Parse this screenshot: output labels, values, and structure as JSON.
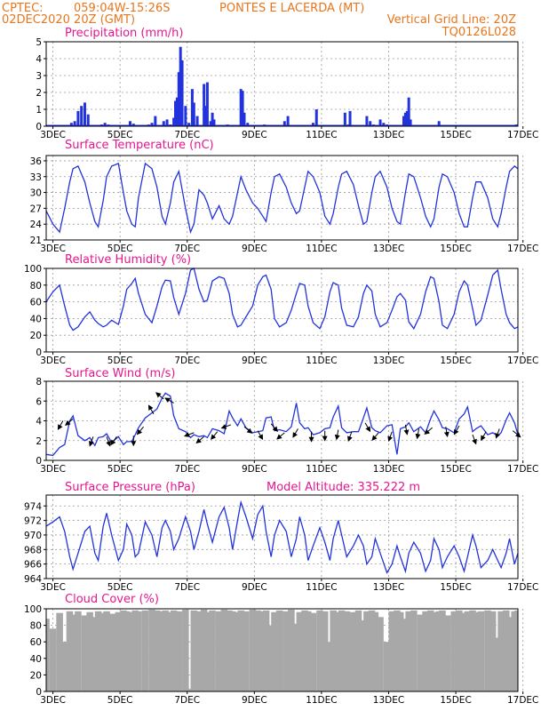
{
  "header": {
    "source": "CPTEC:",
    "coords": "059:04W-15:26S",
    "location": "PONTES E LACERDA (MT)",
    "init_time": "02DEC2020 20Z (GMT)",
    "grid_note": "Vertical Grid Line: 20Z",
    "model": "TQ0126L028"
  },
  "colors": {
    "series": "#2233dd",
    "cloud": "#a8a8a8",
    "header": "#e8761c",
    "titles": "#e4178f",
    "arrows": "#000000"
  },
  "chart_data": [
    {
      "type": "bar",
      "title": "Precipitation (mm/h)",
      "x_ticks": [
        "3DEC",
        "5DEC",
        "7DEC",
        "9DEC",
        "11DEC",
        "13DEC",
        "15DEC",
        "17DEC"
      ],
      "xlim_days": [
        2.8,
        16.85
      ],
      "ylim": [
        0,
        5
      ],
      "y_ticks": [
        "0",
        "1",
        "2",
        "3",
        "4",
        "5"
      ],
      "grid": true,
      "x_days": [
        3.55,
        3.65,
        3.75,
        3.85,
        3.95,
        4.05,
        4.45,
        4.55,
        4.65,
        5.3,
        5.4,
        5.85,
        5.95,
        6.05,
        6.3,
        6.4,
        6.5,
        6.6,
        6.65,
        6.7,
        6.75,
        6.8,
        6.85,
        6.95,
        7.05,
        7.15,
        7.2,
        7.3,
        7.5,
        7.55,
        7.6,
        7.7,
        7.75,
        7.8,
        8.2,
        8.6,
        8.65,
        8.7,
        8.8,
        9.3,
        9.9,
        10.0,
        10.75,
        10.85,
        11.7,
        11.8,
        11.85,
        12.35,
        12.45,
        12.55,
        12.75,
        12.85,
        12.95,
        13.45,
        13.5,
        13.55,
        13.6,
        13.65,
        14.5,
        16.8
      ],
      "values": [
        0.2,
        0.3,
        0.9,
        1.2,
        1.4,
        0.7,
        0.1,
        0.2,
        0.1,
        0.3,
        0.15,
        0.1,
        0.2,
        0.6,
        0.3,
        0.4,
        0.1,
        0.5,
        1.5,
        1.7,
        3.2,
        4.7,
        3.9,
        1.2,
        0.2,
        2.2,
        1.4,
        0.6,
        2.5,
        1.2,
        2.6,
        0.3,
        0.8,
        0.4,
        0.1,
        2.2,
        2.1,
        0.8,
        0.2,
        0.1,
        0.3,
        0.6,
        0.2,
        1.0,
        0.8,
        0.1,
        0.9,
        0.6,
        0.3,
        0.1,
        0.4,
        0.2,
        0.1,
        0.6,
        0.8,
        0.9,
        1.7,
        0.4,
        0.3,
        0.1
      ]
    },
    {
      "type": "line",
      "title": "Surface Temperature (nC)",
      "x_ticks": [
        "3DEC",
        "5DEC",
        "7DEC",
        "9DEC",
        "11DEC",
        "13DEC",
        "15DEC",
        "17DEC"
      ],
      "ylim": [
        21,
        37
      ],
      "y_ticks": [
        "21",
        "24",
        "27",
        "30",
        "33",
        "36"
      ],
      "grid": true,
      "x_days": [
        2.8,
        3.0,
        3.2,
        3.35,
        3.5,
        3.6,
        3.75,
        3.95,
        4.1,
        4.25,
        4.35,
        4.5,
        4.6,
        4.75,
        4.95,
        5.1,
        5.2,
        5.35,
        5.45,
        5.55,
        5.75,
        5.95,
        6.1,
        6.25,
        6.35,
        6.5,
        6.6,
        6.75,
        6.95,
        7.1,
        7.2,
        7.35,
        7.5,
        7.6,
        7.75,
        7.95,
        8.1,
        8.25,
        8.35,
        8.5,
        8.6,
        8.75,
        8.95,
        9.1,
        9.25,
        9.35,
        9.5,
        9.6,
        9.75,
        9.95,
        10.1,
        10.25,
        10.35,
        10.5,
        10.6,
        10.75,
        10.95,
        11.1,
        11.25,
        11.35,
        11.5,
        11.6,
        11.75,
        11.95,
        12.1,
        12.25,
        12.35,
        12.5,
        12.6,
        12.75,
        12.95,
        13.1,
        13.25,
        13.35,
        13.5,
        13.6,
        13.75,
        13.95,
        14.1,
        14.25,
        14.35,
        14.5,
        14.6,
        14.75,
        14.95,
        15.1,
        15.25,
        15.35,
        15.5,
        15.6,
        15.75,
        15.95,
        16.1,
        16.25,
        16.35,
        16.5,
        16.6,
        16.75,
        16.85
      ],
      "values": [
        26.5,
        24.0,
        22.5,
        27.0,
        32.0,
        34.5,
        35.0,
        32.0,
        28.0,
        24.5,
        23.5,
        28.5,
        33.0,
        35.0,
        35.5,
        30.0,
        26.5,
        24.0,
        23.5,
        29.0,
        35.5,
        34.5,
        31.0,
        25.5,
        24.0,
        28.0,
        32.0,
        34.0,
        27.0,
        22.5,
        24.0,
        30.5,
        29.5,
        28.0,
        25.0,
        27.5,
        25.0,
        24.0,
        25.5,
        30.0,
        33.0,
        30.5,
        28.0,
        27.0,
        25.5,
        24.5,
        30.0,
        33.0,
        33.5,
        31.0,
        28.0,
        26.0,
        26.5,
        31.0,
        34.0,
        33.0,
        30.0,
        25.5,
        24.0,
        26.0,
        31.0,
        33.5,
        34.0,
        31.5,
        27.5,
        24.0,
        24.5,
        30.0,
        33.0,
        34.0,
        31.0,
        27.0,
        24.5,
        24.0,
        30.0,
        33.5,
        33.0,
        29.0,
        25.5,
        23.5,
        25.0,
        31.0,
        33.5,
        33.0,
        30.0,
        26.0,
        23.5,
        23.5,
        29.0,
        32.0,
        32.0,
        29.0,
        25.0,
        23.5,
        26.0,
        31.0,
        34.0,
        35.0,
        34.5
      ]
    },
    {
      "type": "line",
      "title": "Relative Humidity (%)",
      "x_ticks": [
        "3DEC",
        "5DEC",
        "7DEC",
        "9DEC",
        "11DEC",
        "13DEC",
        "15DEC",
        "17DEC"
      ],
      "ylim": [
        0,
        100
      ],
      "y_ticks": [
        "0",
        "20",
        "40",
        "60",
        "80",
        "100"
      ],
      "grid": true,
      "x_days": [
        2.8,
        3.0,
        3.2,
        3.35,
        3.5,
        3.6,
        3.75,
        3.95,
        4.1,
        4.25,
        4.35,
        4.5,
        4.6,
        4.75,
        4.95,
        5.1,
        5.2,
        5.35,
        5.45,
        5.55,
        5.75,
        5.95,
        6.1,
        6.25,
        6.35,
        6.5,
        6.6,
        6.75,
        6.95,
        7.1,
        7.2,
        7.35,
        7.5,
        7.6,
        7.75,
        7.95,
        8.1,
        8.25,
        8.35,
        8.5,
        8.6,
        8.75,
        8.95,
        9.1,
        9.25,
        9.35,
        9.5,
        9.6,
        9.75,
        9.95,
        10.1,
        10.25,
        10.35,
        10.5,
        10.6,
        10.75,
        10.95,
        11.1,
        11.25,
        11.35,
        11.5,
        11.6,
        11.75,
        11.95,
        12.1,
        12.25,
        12.35,
        12.5,
        12.6,
        12.75,
        12.95,
        13.1,
        13.25,
        13.35,
        13.5,
        13.6,
        13.75,
        13.95,
        14.1,
        14.25,
        14.35,
        14.5,
        14.6,
        14.75,
        14.95,
        15.1,
        15.25,
        15.35,
        15.5,
        15.6,
        15.75,
        15.95,
        16.1,
        16.25,
        16.35,
        16.5,
        16.6,
        16.75,
        16.85
      ],
      "values": [
        60,
        72,
        80,
        55,
        32,
        26,
        30,
        42,
        48,
        38,
        34,
        30,
        32,
        38,
        33,
        55,
        75,
        82,
        88,
        70,
        45,
        35,
        55,
        78,
        86,
        85,
        65,
        45,
        70,
        98,
        100,
        75,
        60,
        62,
        85,
        90,
        88,
        70,
        45,
        30,
        32,
        42,
        55,
        80,
        90,
        92,
        75,
        40,
        30,
        35,
        50,
        70,
        82,
        80,
        55,
        35,
        28,
        42,
        72,
        83,
        80,
        52,
        32,
        30,
        42,
        70,
        80,
        73,
        45,
        30,
        35,
        50,
        66,
        70,
        62,
        36,
        28,
        45,
        72,
        90,
        88,
        60,
        32,
        28,
        45,
        72,
        85,
        80,
        52,
        32,
        38,
        68,
        92,
        98,
        75,
        45,
        35,
        28,
        30
      ]
    },
    {
      "type": "line",
      "title": "Surface Wind (m/s)",
      "x_ticks": [
        "3DEC",
        "5DEC",
        "7DEC",
        "9DEC",
        "11DEC",
        "13DEC",
        "15DEC",
        "17DEC"
      ],
      "ylim": [
        0,
        8
      ],
      "y_ticks": [
        "0",
        "2",
        "4",
        "6",
        "8"
      ],
      "grid": true,
      "x_days": [
        2.8,
        3.0,
        3.2,
        3.35,
        3.5,
        3.6,
        3.75,
        3.95,
        4.1,
        4.25,
        4.35,
        4.5,
        4.6,
        4.75,
        4.95,
        5.1,
        5.2,
        5.35,
        5.45,
        5.55,
        5.75,
        5.95,
        6.1,
        6.25,
        6.35,
        6.5,
        6.6,
        6.75,
        6.95,
        7.1,
        7.2,
        7.35,
        7.5,
        7.6,
        7.75,
        7.95,
        8.1,
        8.25,
        8.35,
        8.5,
        8.6,
        8.75,
        8.95,
        9.1,
        9.25,
        9.35,
        9.5,
        9.6,
        9.75,
        9.95,
        10.1,
        10.25,
        10.35,
        10.5,
        10.6,
        10.75,
        10.95,
        11.1,
        11.25,
        11.35,
        11.5,
        11.6,
        11.75,
        11.95,
        12.1,
        12.25,
        12.35,
        12.5,
        12.6,
        12.75,
        12.95,
        13.1,
        13.25,
        13.35,
        13.5,
        13.6,
        13.75,
        13.95,
        14.1,
        14.25,
        14.35,
        14.5,
        14.6,
        14.75,
        14.95,
        15.1,
        15.25,
        15.35,
        15.5,
        15.6,
        15.75,
        15.95,
        16.1,
        16.25,
        16.35,
        16.5,
        16.6,
        16.75,
        16.85
      ],
      "values": [
        0.6,
        0.5,
        1.3,
        1.6,
        4.0,
        4.5,
        2.5,
        2.0,
        2.3,
        1.5,
        2.3,
        2.4,
        2.7,
        1.8,
        2.4,
        1.6,
        1.9,
        1.9,
        2.6,
        3.3,
        4.3,
        4.8,
        5.2,
        6.3,
        6.8,
        6.5,
        4.5,
        3.2,
        2.9,
        2.3,
        2.6,
        2.4,
        2.5,
        2.3,
        3.2,
        3.0,
        2.7,
        5.0,
        4.3,
        3.5,
        4.2,
        3.3,
        2.8,
        2.9,
        3.0,
        4.3,
        4.4,
        3.0,
        3.1,
        2.9,
        3.4,
        5.8,
        3.8,
        3.2,
        3.3,
        2.6,
        2.8,
        3.2,
        3.3,
        4.4,
        5.5,
        3.3,
        2.8,
        2.9,
        2.9,
        4.3,
        5.3,
        3.3,
        3.0,
        2.8,
        3.5,
        3.6,
        0.6,
        3.2,
        3.4,
        3.8,
        2.9,
        3.4,
        2.8,
        4.2,
        5.0,
        4.1,
        3.3,
        3.2,
        2.8,
        4.2,
        4.7,
        5.4,
        2.9,
        3.2,
        3.5,
        2.6,
        2.8,
        2.5,
        2.8,
        4.1,
        4.8,
        3.8,
        2.6
      ]
    },
    {
      "type": "line",
      "title": "Surface Pressure (hPa)",
      "subtitle": "Model Altitude: 335.222  m",
      "x_ticks": [
        "3DEC",
        "5DEC",
        "7DEC",
        "9DEC",
        "11DEC",
        "13DEC",
        "15DEC",
        "17DEC"
      ],
      "ylim": [
        964,
        975.5
      ],
      "y_ticks": [
        "964",
        "966",
        "968",
        "970",
        "972",
        "974"
      ],
      "grid": true,
      "x_days": [
        2.8,
        3.0,
        3.2,
        3.35,
        3.5,
        3.6,
        3.75,
        3.95,
        4.1,
        4.25,
        4.35,
        4.5,
        4.6,
        4.75,
        4.95,
        5.1,
        5.2,
        5.35,
        5.45,
        5.55,
        5.75,
        5.95,
        6.1,
        6.25,
        6.35,
        6.5,
        6.6,
        6.75,
        6.95,
        7.1,
        7.2,
        7.35,
        7.5,
        7.6,
        7.75,
        7.95,
        8.1,
        8.25,
        8.35,
        8.5,
        8.6,
        8.75,
        8.95,
        9.1,
        9.25,
        9.35,
        9.5,
        9.6,
        9.75,
        9.95,
        10.1,
        10.25,
        10.35,
        10.5,
        10.6,
        10.75,
        10.95,
        11.1,
        11.25,
        11.35,
        11.5,
        11.6,
        11.75,
        11.95,
        12.1,
        12.25,
        12.35,
        12.5,
        12.6,
        12.75,
        12.95,
        13.1,
        13.25,
        13.35,
        13.5,
        13.6,
        13.75,
        13.95,
        14.1,
        14.25,
        14.35,
        14.5,
        14.6,
        14.75,
        14.95,
        15.1,
        15.25,
        15.35,
        15.5,
        15.6,
        15.75,
        15.95,
        16.1,
        16.25,
        16.35,
        16.5,
        16.6,
        16.75,
        16.85
      ],
      "values": [
        971.2,
        971.8,
        972.5,
        970.5,
        967.0,
        965.3,
        967.5,
        970.5,
        971.2,
        967.5,
        966.5,
        971.2,
        973.0,
        970.0,
        966.5,
        968.0,
        971.5,
        970.0,
        967.0,
        967.5,
        971.8,
        970.0,
        967.0,
        971.0,
        972.0,
        970.5,
        968.0,
        969.5,
        972.5,
        970.5,
        968.0,
        970.5,
        973.5,
        971.5,
        969.0,
        972.5,
        973.8,
        971.0,
        968.0,
        972.0,
        974.5,
        972.5,
        969.5,
        972.8,
        974.0,
        970.5,
        967.0,
        970.0,
        972.0,
        970.5,
        967.0,
        969.5,
        972.5,
        970.0,
        966.5,
        968.5,
        971.0,
        969.0,
        966.5,
        969.5,
        972.0,
        970.0,
        967.0,
        968.5,
        970.0,
        968.5,
        966.0,
        967.0,
        969.5,
        967.5,
        964.8,
        966.0,
        968.5,
        967.0,
        965.0,
        967.5,
        969.0,
        967.5,
        965.0,
        966.5,
        969.5,
        968.0,
        965.5,
        967.0,
        968.5,
        967.0,
        965.0,
        967.0,
        970.0,
        968.5,
        965.5,
        966.5,
        968.0,
        966.5,
        965.5,
        967.5,
        969.5,
        966.0,
        967.5
      ]
    },
    {
      "type": "bar",
      "title": "Cloud Cover (%)",
      "x_ticks": [
        "3DEC",
        "5DEC",
        "7DEC",
        "9DEC",
        "11DEC",
        "13DEC",
        "15DEC",
        "17DEC"
      ],
      "ylim": [
        0,
        100
      ],
      "y_ticks": [
        "0",
        "20",
        "40",
        "60",
        "80",
        "100"
      ],
      "grid": true,
      "x_days": [
        2.8,
        3.0,
        3.2,
        3.35,
        3.5,
        3.6,
        3.75,
        3.95,
        4.1,
        4.25,
        4.35,
        4.5,
        4.6,
        4.75,
        4.95,
        5.1,
        5.2,
        5.35,
        5.45,
        5.55,
        5.75,
        5.95,
        6.1,
        6.25,
        6.35,
        6.5,
        6.6,
        6.75,
        6.95,
        7.1,
        7.2,
        7.35,
        7.5,
        7.6,
        7.75,
        7.95,
        8.1,
        8.25,
        8.35,
        8.5,
        8.6,
        8.75,
        8.95,
        9.1,
        9.25,
        9.35,
        9.5,
        9.6,
        9.75,
        9.95,
        10.1,
        10.25,
        10.35,
        10.5,
        10.6,
        10.75,
        10.95,
        11.1,
        11.25,
        11.35,
        11.5,
        11.6,
        11.75,
        11.95,
        12.1,
        12.25,
        12.35,
        12.5,
        12.6,
        12.75,
        12.95,
        13.1,
        13.25,
        13.35,
        13.5,
        13.6,
        13.75,
        13.95,
        14.1,
        14.25,
        14.35,
        14.5,
        14.6,
        14.75,
        14.95,
        15.1,
        15.25,
        15.35,
        15.5,
        15.6,
        15.75,
        15.95,
        16.1,
        16.25,
        16.35,
        16.5,
        16.6,
        16.75,
        16.85
      ],
      "values": [
        88,
        76,
        95,
        60,
        97,
        93,
        97,
        92,
        96,
        90,
        97,
        95,
        97,
        94,
        96,
        98,
        97,
        96,
        98,
        97,
        98,
        99,
        98,
        97,
        98,
        96,
        98,
        97,
        99,
        3,
        98,
        97,
        99,
        96,
        98,
        97,
        99,
        98,
        97,
        96,
        98,
        97,
        99,
        98,
        97,
        98,
        80,
        96,
        98,
        97,
        99,
        82,
        96,
        98,
        97,
        95,
        98,
        97,
        60,
        98,
        96,
        98,
        97,
        96,
        98,
        86,
        97,
        98,
        96,
        90,
        60,
        97,
        98,
        96,
        88,
        97,
        98,
        93,
        97,
        98,
        96,
        97,
        98,
        92,
        97,
        98,
        95,
        97,
        98,
        96,
        97,
        98,
        97,
        65,
        97,
        98,
        90,
        97,
        98
      ]
    }
  ],
  "wind_arrows": {
    "note": "direction the wind blows toward, degrees clockwise from north",
    "x_days": [
      3.3,
      3.6,
      4.2,
      4.6,
      4.9,
      5.4,
      5.7,
      6.0,
      6.3,
      6.6,
      7.2,
      7.5,
      7.9,
      8.3,
      8.7,
      9.1,
      9.5,
      9.9,
      10.3,
      10.7,
      11.1,
      11.5,
      11.9,
      12.3,
      12.7,
      13.1,
      13.5,
      13.9,
      14.3,
      14.7,
      15.1,
      15.5,
      15.9,
      16.3,
      16.7
    ],
    "speed": [
      4.0,
      4.2,
      2.4,
      2.4,
      2.4,
      2.5,
      3.4,
      4.7,
      6.2,
      5.8,
      2.8,
      2.4,
      2.9,
      3.6,
      3.4,
      3.0,
      3.7,
      2.8,
      3.2,
      2.9,
      3.0,
      3.1,
      2.9,
      3.8,
      2.8,
      2.9,
      3.6,
      3.2,
      3.3,
      3.4,
      3.5,
      2.6,
      2.9,
      3.2,
      3.0
    ],
    "direction": [
      210,
      230,
      200,
      160,
      215,
      180,
      220,
      330,
      310,
      300,
      250,
      230,
      220,
      250,
      130,
      150,
      140,
      230,
      210,
      180,
      180,
      190,
      200,
      150,
      220,
      200,
      170,
      190,
      230,
      170,
      210,
      160,
      210,
      200,
      130
    ]
  }
}
